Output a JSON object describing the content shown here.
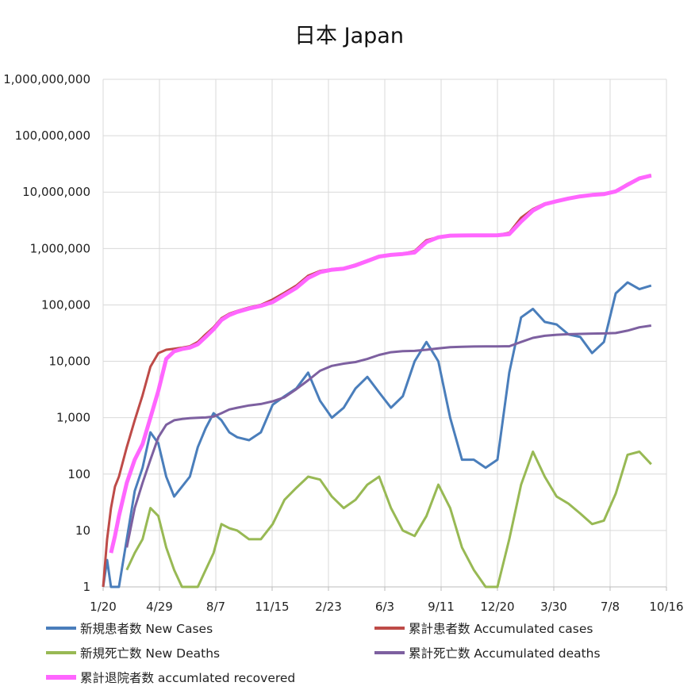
{
  "chart_data": {
    "type": "line",
    "title": "日本 Japan",
    "xlabel": "",
    "ylabel": "",
    "yscale": "log",
    "ylim": [
      1,
      1000000000
    ],
    "xlim": [
      "2020-01-20",
      "2022-10-16"
    ],
    "grid": true,
    "legend_placement": "bottom",
    "y_tick_labels": [
      "1",
      "10",
      "100",
      "1,000",
      "10,000",
      "100,000",
      "1,000,000",
      "10,000,000",
      "100,000,000",
      "1,000,000,000"
    ],
    "x_tick_labels": [
      "1/20",
      "4/29",
      "8/7",
      "11/15",
      "2/23",
      "6/3",
      "9/11",
      "12/20",
      "3/30",
      "7/8",
      "10/16"
    ],
    "x": [
      "2020-01-20",
      "2020-01-27",
      "2020-02-03",
      "2020-02-10",
      "2020-02-17",
      "2020-03-02",
      "2020-03-16",
      "2020-03-30",
      "2020-04-13",
      "2020-04-27",
      "2020-05-11",
      "2020-05-25",
      "2020-06-08",
      "2020-06-22",
      "2020-07-06",
      "2020-07-20",
      "2020-08-03",
      "2020-08-17",
      "2020-08-31",
      "2020-09-14",
      "2020-10-05",
      "2020-10-26",
      "2020-11-16",
      "2020-12-07",
      "2020-12-28",
      "2021-01-18",
      "2021-02-08",
      "2021-03-01",
      "2021-03-22",
      "2021-04-12",
      "2021-05-03",
      "2021-05-24",
      "2021-06-14",
      "2021-07-05",
      "2021-07-26",
      "2021-08-16",
      "2021-09-06",
      "2021-09-27",
      "2021-10-18",
      "2021-11-08",
      "2021-11-29",
      "2021-12-20",
      "2022-01-10",
      "2022-01-31",
      "2022-02-21",
      "2022-03-14",
      "2022-04-04",
      "2022-04-25",
      "2022-05-16",
      "2022-06-06",
      "2022-06-27",
      "2022-07-18",
      "2022-08-08",
      "2022-08-29",
      "2022-09-19"
    ],
    "series": [
      {
        "name": "新規患者数 New Cases",
        "color": "#4a7ebb",
        "width": 3,
        "values": [
          1,
          3,
          1,
          1,
          1,
          7,
          50,
          130,
          550,
          350,
          90,
          40,
          60,
          90,
          300,
          650,
          1200,
          900,
          550,
          450,
          400,
          550,
          1700,
          2400,
          3300,
          6300,
          2000,
          1000,
          1500,
          3300,
          5300,
          2800,
          1500,
          2400,
          10000,
          22000,
          10000,
          1000,
          180,
          180,
          130,
          180,
          6300,
          60000,
          85000,
          50000,
          45000,
          30000,
          27000,
          14000,
          22000,
          160000,
          250000,
          190000,
          220000
        ]
      },
      {
        "name": "累計患者数 Accumulated cases",
        "color": "#be4b48",
        "width": 3,
        "values": [
          1,
          7,
          25,
          60,
          90,
          300,
          900,
          2500,
          8000,
          14000,
          16000,
          16700,
          17500,
          18500,
          22000,
          30000,
          40000,
          58000,
          70000,
          78000,
          90000,
          100000,
          125000,
          165000,
          220000,
          330000,
          400000,
          430000,
          450000,
          520000,
          620000,
          740000,
          780000,
          810000,
          900000,
          1400000,
          1600000,
          1700000,
          1710000,
          1720000,
          1725000,
          1730000,
          1900000,
          3500000,
          5000000,
          6300000,
          7000000,
          7800000,
          8500000,
          9000000,
          9300000,
          10500000,
          14000000,
          18000000,
          20000000
        ]
      },
      {
        "name": "新規死亡数 New Deaths",
        "color": "#98b954",
        "width": 3,
        "values": [
          null,
          null,
          null,
          null,
          null,
          2,
          4,
          7,
          25,
          18,
          5,
          2,
          1,
          1,
          1,
          2,
          4,
          13,
          11,
          10,
          7,
          7,
          13,
          35,
          57,
          90,
          80,
          40,
          25,
          35,
          65,
          90,
          25,
          10,
          8,
          18,
          65,
          25,
          5,
          2,
          1,
          1,
          7,
          65,
          250,
          90,
          40,
          30,
          20,
          13,
          15,
          45,
          220,
          250,
          150
        ]
      },
      {
        "name": "累計死亡数 Accumulated deaths",
        "color": "#7d60a0",
        "width": 3,
        "values": [
          null,
          null,
          null,
          null,
          null,
          5,
          25,
          70,
          180,
          450,
          750,
          900,
          950,
          980,
          1000,
          1010,
          1050,
          1200,
          1400,
          1500,
          1650,
          1750,
          1950,
          2300,
          3200,
          4600,
          6800,
          8300,
          9100,
          9700,
          11000,
          13000,
          14500,
          15100,
          15300,
          16000,
          17000,
          17800,
          18100,
          18300,
          18400,
          18400,
          18500,
          22000,
          26000,
          28300,
          29500,
          30200,
          30600,
          31000,
          31200,
          31700,
          35000,
          40000,
          43000
        ]
      },
      {
        "name": "累計退院者数 accumlated recovered",
        "color": "#ff66ff",
        "width": 5,
        "values": [
          null,
          null,
          4,
          8,
          18,
          70,
          180,
          340,
          1000,
          3000,
          11000,
          15000,
          16500,
          17500,
          20000,
          27000,
          37000,
          54000,
          66000,
          75000,
          86000,
          96000,
          112000,
          150000,
          200000,
          300000,
          380000,
          420000,
          440000,
          500000,
          600000,
          720000,
          770000,
          800000,
          850000,
          1300000,
          1580000,
          1690000,
          1700000,
          1710000,
          1715000,
          1720000,
          1800000,
          3000000,
          4700000,
          6100000,
          6900000,
          7700000,
          8400000,
          8900000,
          9200000,
          10300000,
          13500000,
          17500000,
          19700000
        ]
      }
    ]
  }
}
